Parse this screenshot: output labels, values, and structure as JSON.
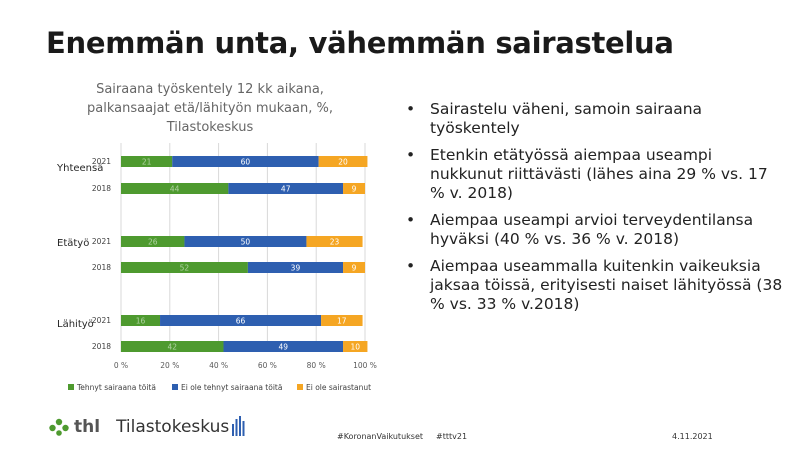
{
  "slide": {
    "title": "Enemmän unta, vähemmän sairastelua",
    "bullets": [
      "Sairastelu väheni, samoin sairaana työskentely",
      "Etenkin etätyössä aiempaa useampi nukkunut riittävästi (lähes aina 29 % vs. 17 % v. 2018)",
      "Aiempaa useampi arvioi terveydentilansa hyväksi (40 % vs. 36 % v. 2018)",
      "Aiempaa useammalla kuitenkin vaikeuksia jaksaa töissä, erityisesti naiset lähityössä (38 % vs. 33 % v.2018)"
    ],
    "bullet_symbol": "•"
  },
  "chart_data": {
    "type": "bar",
    "orientation": "horizontal",
    "stacked": true,
    "title": "Sairaana työskentely 12 kk aikana, palkansaajat etä/lähityön mukaan, %, Tilastokeskus",
    "groups": [
      "Yhteensä",
      "Etätyö",
      "Lähityö"
    ],
    "years": [
      "2021",
      "2018"
    ],
    "series": [
      {
        "name": "Tehnyt sairaana töitä",
        "color": "#4e9a2f",
        "values": [
          21,
          44,
          26,
          52,
          16,
          42
        ]
      },
      {
        "name": "Ei ole tehnyt sairaana töitä",
        "color": "#2e5fb0",
        "values": [
          60,
          47,
          50,
          39,
          66,
          49
        ]
      },
      {
        "name": "Ei ole sairastanut",
        "color": "#f5a623",
        "values": [
          20,
          9,
          23,
          9,
          17,
          10
        ]
      }
    ],
    "x_ticks": [
      "0 %",
      "20 %",
      "40 %",
      "60 %",
      "80 %",
      "100 %"
    ],
    "xlim": [
      0,
      100
    ],
    "grid": true,
    "legend_position": "bottom"
  },
  "footer": {
    "thl": "thl",
    "tilastokeskus": "Tilastokeskus",
    "hashtag1": "#KoronanVaikutukset",
    "hashtag2": "#tttv21",
    "date": "4.11.2021"
  }
}
